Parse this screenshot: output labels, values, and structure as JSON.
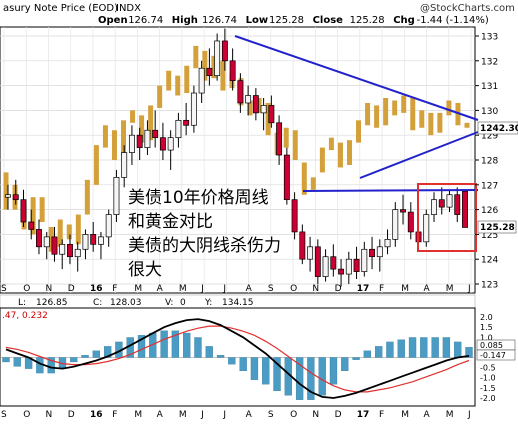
{
  "header": {
    "title": "asury Note Price (EOD)",
    "exchange": "INDX",
    "copyright": "@StockCharts.com",
    "ohlc": [
      {
        "label": "Open",
        "value": "126.74"
      },
      {
        "label": "High",
        "value": "126.74"
      },
      {
        "label": "Low",
        "value": "125.28"
      },
      {
        "label": "Close",
        "value": "125.28"
      },
      {
        "label": "Chg",
        "value": "-1.44 (-1.14%)"
      }
    ]
  },
  "annotation_lines": [
    "美债10年价格周线",
    "和黄金对比",
    "美债的大阴线杀伤力",
    "很大"
  ],
  "price_labels": {
    "gold_last": "1242.30",
    "last": "125.28"
  },
  "gold_bar": {
    "L_label": "L:",
    "L": "126.85",
    "C_label": "C:",
    "C": "128.03",
    "V_label": "V:",
    "V": "0",
    "Y_label": "Y:",
    "Y": "134.15"
  },
  "macd": {
    "title": ".47, 0.232",
    "last_values": [
      "0.085",
      "-0.147"
    ]
  },
  "colors": {
    "up": "#f5f5f5",
    "down": "#cc0033",
    "gold": "#d4a03a",
    "trend": "#2222cc",
    "box": "#e03030",
    "macd_line": "#000000",
    "signal_line": "#e03030",
    "hist": "#4a9cc4"
  },
  "chart_data": {
    "type": "candlestick",
    "ylim": [
      122.8,
      133.6
    ],
    "yticks": [
      123,
      124,
      125,
      126,
      127,
      128,
      129,
      130,
      131,
      132,
      133
    ],
    "x_labels": [
      "S",
      "O",
      "N",
      "D",
      "16",
      "F",
      "M",
      "A",
      "M",
      "J",
      "J",
      "A",
      "S",
      "O",
      "N",
      "D",
      "17",
      "F",
      "M",
      "A",
      "M",
      "J"
    ],
    "macd_yticks": [
      "2.0",
      "1.5",
      "1.0",
      "0.5",
      "-0.5",
      "-1.0",
      "-1.5",
      "-2.0"
    ],
    "macd_ylim": [
      -2.2,
      2.2
    ],
    "ohlc": [
      [
        126.5,
        127.0,
        126.0,
        126.6
      ],
      [
        126.6,
        127.2,
        126.2,
        126.4
      ],
      [
        126.4,
        126.8,
        125.3,
        125.5
      ],
      [
        125.5,
        126.0,
        124.8,
        125.2
      ],
      [
        125.2,
        125.6,
        124.2,
        124.5
      ],
      [
        124.5,
        125.1,
        124.0,
        124.9
      ],
      [
        124.9,
        125.3,
        123.9,
        124.2
      ],
      [
        124.2,
        124.8,
        123.6,
        124.6
      ],
      [
        124.6,
        125.0,
        123.8,
        124.1
      ],
      [
        124.1,
        124.7,
        123.5,
        124.4
      ],
      [
        124.4,
        125.2,
        124.0,
        125.0
      ],
      [
        125.0,
        125.5,
        124.3,
        124.6
      ],
      [
        124.6,
        125.1,
        124.0,
        124.9
      ],
      [
        124.9,
        126.0,
        124.5,
        125.8
      ],
      [
        125.8,
        127.6,
        125.5,
        127.3
      ],
      [
        127.3,
        128.6,
        126.9,
        128.3
      ],
      [
        128.3,
        129.4,
        127.8,
        129.0
      ],
      [
        129.0,
        129.3,
        128.0,
        128.5
      ],
      [
        128.5,
        129.6,
        128.2,
        129.2
      ],
      [
        129.2,
        130.0,
        128.5,
        128.9
      ],
      [
        128.9,
        129.5,
        128.0,
        128.4
      ],
      [
        128.4,
        129.2,
        127.6,
        128.9
      ],
      [
        128.9,
        129.9,
        128.5,
        129.6
      ],
      [
        129.6,
        130.3,
        129.0,
        129.4
      ],
      [
        129.4,
        131.0,
        129.1,
        130.7
      ],
      [
        130.7,
        132.0,
        130.3,
        131.7
      ],
      [
        131.7,
        132.5,
        131.0,
        131.4
      ],
      [
        131.4,
        133.1,
        131.2,
        132.8
      ],
      [
        132.8,
        133.3,
        131.6,
        132.0
      ],
      [
        132.0,
        132.5,
        130.8,
        131.2
      ],
      [
        131.2,
        131.5,
        129.9,
        130.3
      ],
      [
        130.3,
        131.0,
        129.8,
        130.6
      ],
      [
        130.6,
        130.9,
        129.6,
        129.9
      ],
      [
        129.9,
        130.5,
        129.2,
        130.2
      ],
      [
        130.2,
        130.6,
        129.3,
        129.5
      ],
      [
        129.5,
        129.8,
        127.8,
        128.2
      ],
      [
        128.2,
        128.5,
        126.2,
        126.4
      ],
      [
        126.4,
        126.7,
        124.8,
        125.1
      ],
      [
        125.1,
        125.4,
        123.8,
        124.0
      ],
      [
        124.0,
        124.9,
        123.5,
        124.5
      ],
      [
        124.5,
        124.8,
        123.0,
        123.3
      ],
      [
        123.3,
        124.4,
        123.1,
        124.1
      ],
      [
        124.1,
        124.6,
        123.3,
        123.6
      ],
      [
        123.6,
        124.0,
        122.9,
        123.4
      ],
      [
        123.4,
        124.3,
        123.0,
        124.0
      ],
      [
        124.0,
        124.5,
        123.2,
        123.5
      ],
      [
        123.5,
        124.7,
        123.3,
        124.4
      ],
      [
        124.4,
        124.9,
        123.6,
        124.1
      ],
      [
        124.1,
        124.8,
        123.5,
        124.5
      ],
      [
        124.5,
        125.2,
        124.2,
        124.8
      ],
      [
        124.8,
        126.3,
        124.5,
        126.0
      ],
      [
        126.0,
        126.6,
        125.4,
        125.9
      ],
      [
        125.9,
        126.3,
        124.8,
        125.1
      ],
      [
        125.1,
        125.6,
        124.3,
        124.7
      ],
      [
        124.7,
        126.0,
        124.5,
        125.8
      ],
      [
        125.8,
        126.7,
        125.5,
        126.4
      ],
      [
        126.4,
        126.9,
        125.8,
        126.1
      ],
      [
        126.1,
        126.8,
        125.9,
        126.6
      ],
      [
        126.6,
        126.9,
        125.5,
        125.8
      ],
      [
        126.74,
        126.74,
        125.28,
        125.28
      ]
    ],
    "gold": [
      [
        126.0,
        127.5
      ],
      [
        127.0,
        126.0
      ],
      [
        126.2,
        125.2
      ],
      [
        125.0,
        126.5
      ],
      [
        126.5,
        125.5
      ],
      [
        125.3,
        124.3
      ],
      [
        124.5,
        125.6
      ],
      [
        125.4,
        124.8
      ],
      [
        124.6,
        125.8
      ],
      [
        125.8,
        127.2
      ],
      [
        127.0,
        128.6
      ],
      [
        128.5,
        129.4
      ],
      [
        129.2,
        128.0
      ],
      [
        128.2,
        129.6
      ],
      [
        129.5,
        130.0
      ],
      [
        129.8,
        128.7
      ],
      [
        128.8,
        130.2
      ],
      [
        130.1,
        131.0
      ],
      [
        130.8,
        131.6
      ],
      [
        131.4,
        130.6
      ],
      [
        130.7,
        131.8
      ],
      [
        131.7,
        132.6
      ],
      [
        132.4,
        131.2
      ],
      [
        131.3,
        132.2
      ],
      [
        132.0,
        130.8
      ],
      [
        130.9,
        131.5
      ],
      [
        131.3,
        130.2
      ],
      [
        130.4,
        129.8
      ],
      [
        129.9,
        130.5
      ],
      [
        130.3,
        129.0
      ],
      [
        129.1,
        128.2
      ],
      [
        128.5,
        129.3
      ],
      [
        129.2,
        128.0
      ],
      [
        127.9,
        126.6
      ],
      [
        126.8,
        127.3
      ],
      [
        127.5,
        128.5
      ],
      [
        128.4,
        128.9
      ],
      [
        128.7,
        127.7
      ],
      [
        127.8,
        128.8
      ],
      [
        128.7,
        129.6
      ],
      [
        129.4,
        130.3
      ],
      [
        130.2,
        129.3
      ],
      [
        129.4,
        130.5
      ],
      [
        130.4,
        129.8
      ],
      [
        129.9,
        130.6
      ],
      [
        130.5,
        129.2
      ],
      [
        129.3,
        130.0
      ],
      [
        129.9,
        129.0
      ],
      [
        129.1,
        129.9
      ],
      [
        129.8,
        130.4
      ],
      [
        130.3,
        129.4
      ],
      [
        129.5,
        129.3
      ]
    ],
    "series": [
      {
        "name": "MACD",
        "values": [
          0.4,
          0.2,
          0.0,
          -0.3,
          -0.5,
          -0.55,
          -0.45,
          -0.3,
          -0.15,
          0.05,
          0.3,
          0.6,
          0.9,
          1.2,
          1.5,
          1.7,
          1.85,
          1.9,
          1.8,
          1.6,
          1.3,
          1.0,
          0.6,
          0.2,
          -0.3,
          -0.8,
          -1.3,
          -1.7,
          -1.95,
          -2.0,
          -1.9,
          -1.75,
          -1.55,
          -1.35,
          -1.15,
          -0.95,
          -0.75,
          -0.55,
          -0.35,
          -0.15,
          0.0,
          0.08
        ]
      },
      {
        "name": "Signal",
        "values": [
          0.5,
          0.4,
          0.25,
          0.05,
          -0.15,
          -0.3,
          -0.35,
          -0.35,
          -0.3,
          -0.2,
          -0.05,
          0.15,
          0.4,
          0.65,
          0.9,
          1.1,
          1.3,
          1.45,
          1.55,
          1.55,
          1.45,
          1.3,
          1.1,
          0.8,
          0.45,
          0.05,
          -0.35,
          -0.75,
          -1.1,
          -1.4,
          -1.6,
          -1.7,
          -1.7,
          -1.6,
          -1.5,
          -1.35,
          -1.2,
          -1.0,
          -0.8,
          -0.6,
          -0.35,
          -0.15
        ]
      }
    ]
  }
}
